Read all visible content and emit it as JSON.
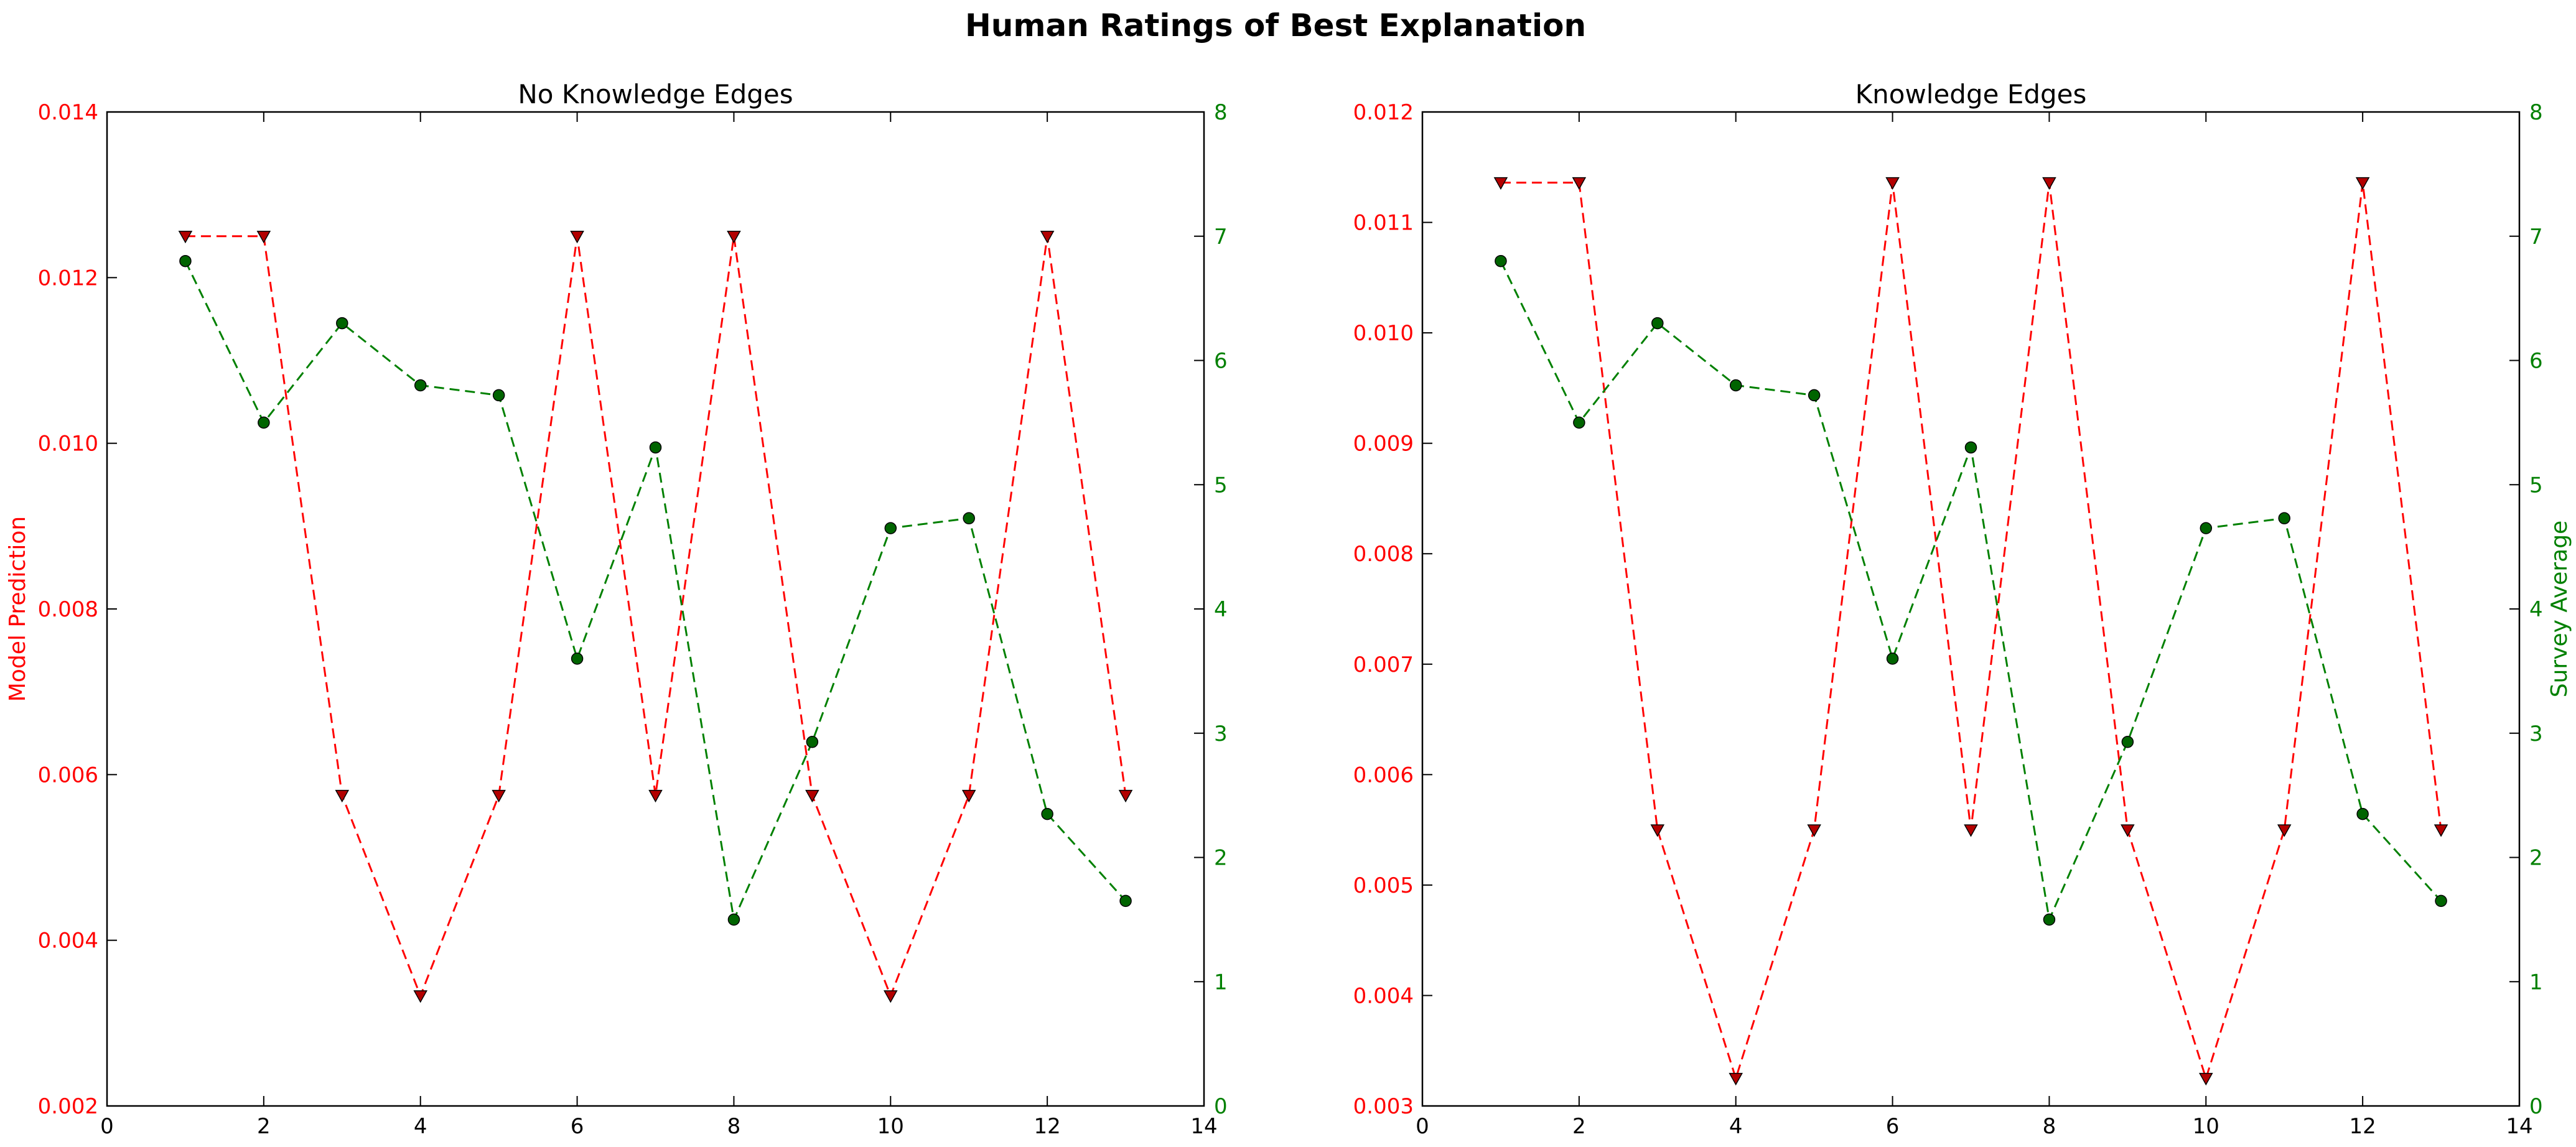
{
  "figure": {
    "suptitle": "Human Ratings of Best Explanation",
    "colors": {
      "model": "#ff0000",
      "model_marker": "#b30000",
      "survey": "#008000",
      "survey_marker": "#006400",
      "axes": "#000000"
    }
  },
  "chart_data": [
    {
      "type": "line",
      "title": "No Knowledge Edges",
      "xlabel": "",
      "xlim": [
        0,
        14
      ],
      "x_ticks": [
        0,
        2,
        4,
        6,
        8,
        10,
        12,
        14
      ],
      "x_tick_labels": [
        "0",
        "2",
        "4",
        "6",
        "8",
        "10",
        "12",
        "14"
      ],
      "x": [
        1,
        2,
        3,
        4,
        5,
        6,
        7,
        8,
        9,
        10,
        11,
        12,
        13
      ],
      "left_axis": {
        "label": "Model Prediction",
        "ylim": [
          0.002,
          0.014
        ],
        "ticks": [
          0.002,
          0.004,
          0.006,
          0.008,
          0.01,
          0.012,
          0.014
        ],
        "tick_labels": [
          "0.002",
          "0.004",
          "0.006",
          "0.008",
          "0.010",
          "0.012",
          "0.014"
        ]
      },
      "right_axis": {
        "label": "",
        "ylim": [
          0,
          8
        ],
        "ticks": [
          0,
          1,
          2,
          3,
          4,
          5,
          6,
          7,
          8
        ],
        "tick_labels": [
          "0",
          "1",
          "2",
          "3",
          "4",
          "5",
          "6",
          "7",
          "8"
        ]
      },
      "series": [
        {
          "name": "Model Prediction",
          "axis": "left",
          "marker": "triangle-down",
          "line": "dashed",
          "values": [
            0.0125,
            0.0125,
            0.00575,
            0.00333,
            0.00575,
            0.0125,
            0.00575,
            0.0125,
            0.00575,
            0.00333,
            0.00575,
            0.0125,
            0.00575
          ]
        },
        {
          "name": "Survey Average",
          "axis": "right",
          "marker": "circle",
          "line": "dashed",
          "values": [
            6.8,
            5.5,
            6.3,
            5.8,
            5.72,
            3.6,
            5.3,
            1.5,
            2.93,
            4.65,
            4.73,
            2.35,
            1.65
          ]
        }
      ]
    },
    {
      "type": "line",
      "title": "Knowledge Edges",
      "xlabel": "",
      "xlim": [
        0,
        14
      ],
      "x_ticks": [
        0,
        2,
        4,
        6,
        8,
        10,
        12,
        14
      ],
      "x_tick_labels": [
        "0",
        "2",
        "4",
        "6",
        "8",
        "10",
        "12",
        "14"
      ],
      "x": [
        1,
        2,
        3,
        4,
        5,
        6,
        7,
        8,
        9,
        10,
        11,
        12,
        13
      ],
      "left_axis": {
        "label": "",
        "ylim": [
          0.003,
          0.012
        ],
        "ticks": [
          0.003,
          0.004,
          0.005,
          0.006,
          0.007,
          0.008,
          0.009,
          0.01,
          0.011,
          0.012
        ],
        "tick_labels": [
          "0.003",
          "0.004",
          "0.005",
          "0.006",
          "0.007",
          "0.008",
          "0.009",
          "0.010",
          "0.011",
          "0.012"
        ]
      },
      "right_axis": {
        "label": "Survey Average",
        "ylim": [
          0,
          8
        ],
        "ticks": [
          0,
          1,
          2,
          3,
          4,
          5,
          6,
          7,
          8
        ],
        "tick_labels": [
          "0",
          "1",
          "2",
          "3",
          "4",
          "5",
          "6",
          "7",
          "8"
        ]
      },
      "series": [
        {
          "name": "Model Prediction",
          "axis": "left",
          "marker": "triangle-down",
          "line": "dashed",
          "values": [
            0.01136,
            0.01136,
            0.0055,
            0.00325,
            0.0055,
            0.01136,
            0.0055,
            0.01136,
            0.0055,
            0.00325,
            0.0055,
            0.01136,
            0.0055
          ]
        },
        {
          "name": "Survey Average",
          "axis": "right",
          "marker": "circle",
          "line": "dashed",
          "values": [
            6.8,
            5.5,
            6.3,
            5.8,
            5.72,
            3.6,
            5.3,
            1.5,
            2.93,
            4.65,
            4.73,
            2.35,
            1.65
          ]
        }
      ]
    }
  ]
}
